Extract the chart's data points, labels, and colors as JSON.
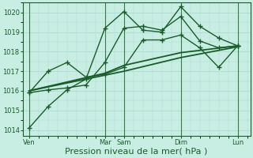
{
  "background_color": "#c8eee4",
  "grid_color": "#a8d8cc",
  "line_color": "#1a5c2a",
  "vline_color": "#3a7a4a",
  "ylim": [
    1013.7,
    1020.5
  ],
  "yticks": [
    1014,
    1015,
    1016,
    1017,
    1018,
    1019,
    1020
  ],
  "ytick_fontsize": 6,
  "xlabel": "Pression niveau de la mer( hPa )",
  "xlabel_fontsize": 8,
  "xtick_labels": [
    "Ven",
    "Mar",
    "Sam",
    "Dim",
    "Lun"
  ],
  "xtick_positions": [
    0,
    48,
    60,
    96,
    132
  ],
  "xlim": [
    -4,
    140
  ],
  "vline_positions": [
    0,
    48,
    60,
    96,
    132
  ],
  "lines": [
    {
      "x": [
        0,
        12,
        24,
        36,
        48,
        60,
        72,
        84,
        96,
        108,
        120,
        132
      ],
      "y": [
        1014.1,
        1015.2,
        1016.05,
        1016.6,
        1019.2,
        1020.05,
        1019.1,
        1019.0,
        1020.3,
        1019.3,
        1018.7,
        1018.3
      ],
      "marker": "+",
      "markersize": 4,
      "linewidth": 1.0
    },
    {
      "x": [
        0,
        12,
        24,
        36,
        48,
        60,
        72,
        84,
        96,
        108,
        120,
        132
      ],
      "y": [
        1015.9,
        1016.05,
        1016.15,
        1016.3,
        1017.45,
        1019.2,
        1019.3,
        1019.1,
        1019.8,
        1018.55,
        1018.2,
        1018.3
      ],
      "marker": "+",
      "markersize": 4,
      "linewidth": 1.0
    },
    {
      "x": [
        0,
        12,
        24,
        36,
        48,
        60,
        72,
        84,
        96,
        108,
        120,
        132
      ],
      "y": [
        1015.9,
        1017.0,
        1017.45,
        1016.7,
        1016.85,
        1017.2,
        1018.6,
        1018.6,
        1018.85,
        1018.2,
        1017.2,
        1018.3
      ],
      "marker": "+",
      "markersize": 4,
      "linewidth": 1.0
    },
    {
      "x": [
        0,
        48,
        60,
        96,
        132
      ],
      "y": [
        1016.0,
        1016.8,
        1017.0,
        1017.7,
        1018.25
      ],
      "marker": null,
      "markersize": 0,
      "linewidth": 1.3
    },
    {
      "x": [
        0,
        48,
        60,
        96,
        132
      ],
      "y": [
        1016.0,
        1016.9,
        1017.3,
        1017.95,
        1018.3
      ],
      "marker": null,
      "markersize": 0,
      "linewidth": 1.3
    }
  ]
}
